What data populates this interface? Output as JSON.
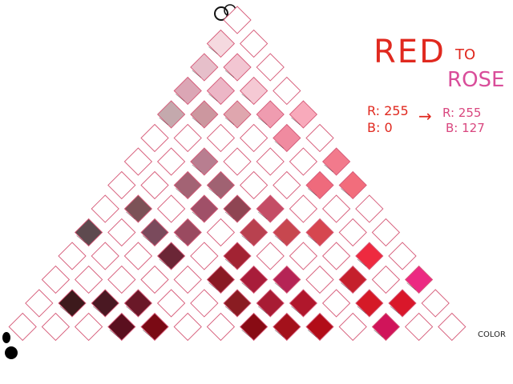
{
  "heading": {
    "word_from": "RED",
    "word_link": "TO",
    "word_to": "ROSE"
  },
  "formula": {
    "r_from": "R: 255",
    "b_from": "B:   0",
    "arrow": "→",
    "r_to": "R: 255",
    "b_to": "B: 127"
  },
  "corner_label": "COLOR",
  "colors": {
    "red_heading": "#e0291f",
    "rose_heading": "#d94d9a",
    "formula_red": "#e0291f",
    "formula_rose": "#d9477f",
    "outline": "#d65a78",
    "label_ink": "#222222"
  },
  "grid": {
    "rows": 14,
    "filled_cells": [
      {
        "row": 1,
        "col": 0,
        "color": "#f5d9df",
        "note": "pale blush"
      },
      {
        "row": 2,
        "col": 0,
        "color": "#e6bfca"
      },
      {
        "row": 2,
        "col": 1,
        "color": "#f2c6d2"
      },
      {
        "row": 3,
        "col": 0,
        "color": "#dba6b5"
      },
      {
        "row": 3,
        "col": 1,
        "color": "#ecb6c6"
      },
      {
        "row": 3,
        "col": 2,
        "color": "#f5c9d4"
      },
      {
        "row": 4,
        "col": 0,
        "color": "#c4a9ad"
      },
      {
        "row": 4,
        "col": 1,
        "color": "#cc979f"
      },
      {
        "row": 4,
        "col": 2,
        "color": "#dfa6ae"
      },
      {
        "row": 4,
        "col": 3,
        "color": "#ef9cb0"
      },
      {
        "row": 4,
        "col": 4,
        "color": "#f8aabb"
      },
      {
        "row": 5,
        "col": 4,
        "color": "#f08ba0"
      },
      {
        "row": 6,
        "col": 2,
        "color": "#b87e90"
      },
      {
        "row": 6,
        "col": 6,
        "color": "#f27a8c"
      },
      {
        "row": 7,
        "col": 2,
        "color": "#a36374"
      },
      {
        "row": 7,
        "col": 3,
        "color": "#a06272"
      },
      {
        "row": 7,
        "col": 6,
        "color": "#ef6a7c"
      },
      {
        "row": 7,
        "col": 7,
        "color": "#f26d7c"
      },
      {
        "row": 8,
        "col": 1,
        "color": "#7c5257"
      },
      {
        "row": 8,
        "col": 3,
        "color": "#a05068"
      },
      {
        "row": 8,
        "col": 4,
        "color": "#8f4553"
      },
      {
        "row": 8,
        "col": 5,
        "color": "#c44d66"
      },
      {
        "row": 9,
        "col": 0,
        "color": "#5e4a4f"
      },
      {
        "row": 9,
        "col": 2,
        "color": "#7a4a5c"
      },
      {
        "row": 9,
        "col": 3,
        "color": "#9a4a60"
      },
      {
        "row": 9,
        "col": 5,
        "color": "#b8414f"
      },
      {
        "row": 9,
        "col": 6,
        "color": "#c7474f"
      },
      {
        "row": 9,
        "col": 7,
        "color": "#d6464f"
      },
      {
        "row": 10,
        "col": 3,
        "color": "#6b2636"
      },
      {
        "row": 10,
        "col": 5,
        "color": "#a22333"
      },
      {
        "row": 10,
        "col": 9,
        "color": "#ee2a3f"
      },
      {
        "row": 11,
        "col": 5,
        "color": "#8a1a24"
      },
      {
        "row": 11,
        "col": 6,
        "color": "#a81d3a"
      },
      {
        "row": 11,
        "col": 7,
        "color": "#b52455"
      },
      {
        "row": 11,
        "col": 9,
        "color": "#c5202c"
      },
      {
        "row": 11,
        "col": 11,
        "color": "#ec2a82"
      },
      {
        "row": 12,
        "col": 1,
        "color": "#3d1a1c"
      },
      {
        "row": 12,
        "col": 2,
        "color": "#4a1822"
      },
      {
        "row": 12,
        "col": 3,
        "color": "#6a1828"
      },
      {
        "row": 12,
        "col": 6,
        "color": "#8a1c22"
      },
      {
        "row": 12,
        "col": 7,
        "color": "#a81c34"
      },
      {
        "row": 12,
        "col": 8,
        "color": "#b0172c"
      },
      {
        "row": 12,
        "col": 10,
        "color": "#d51a27"
      },
      {
        "row": 12,
        "col": 11,
        "color": "#d9172a"
      },
      {
        "row": 13,
        "col": 3,
        "color": "#5a0f1e"
      },
      {
        "row": 13,
        "col": 4,
        "color": "#7a0a14"
      },
      {
        "row": 13,
        "col": 7,
        "color": "#880b14"
      },
      {
        "row": 13,
        "col": 8,
        "color": "#a3111b"
      },
      {
        "row": 13,
        "col": 9,
        "color": "#b20d18"
      },
      {
        "row": 13,
        "col": 11,
        "color": "#d0145a"
      }
    ]
  }
}
